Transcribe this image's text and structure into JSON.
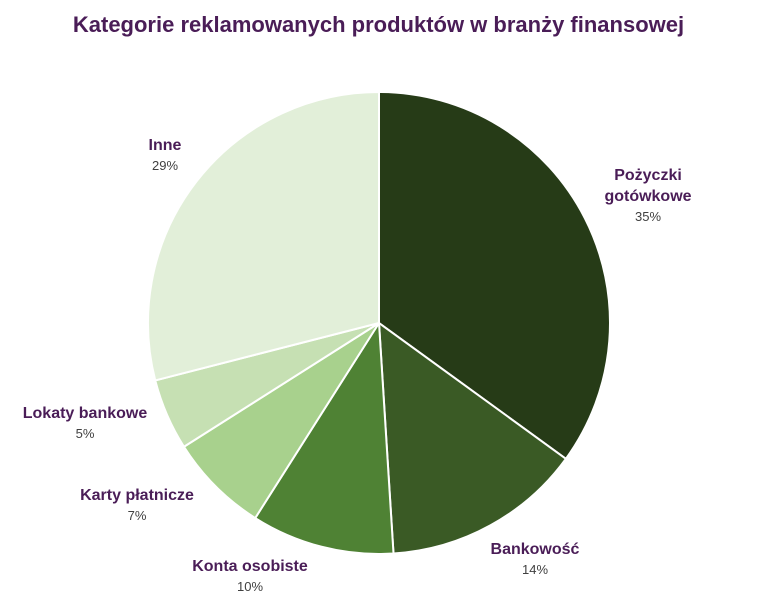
{
  "chart_data": {
    "type": "pie",
    "title": "Kategorie reklamowanych produktów w branży finansowej",
    "start_angle_deg": 0,
    "direction": "clockwise",
    "label_color": "#4a1d57",
    "value_color": "#404040",
    "slices": [
      {
        "label": [
          "Pożyczki",
          "gotówkowe"
        ],
        "value": 35,
        "display": "35%",
        "color": "#263b17"
      },
      {
        "label": [
          "Bankowość"
        ],
        "value": 14,
        "display": "14%",
        "color": "#3a5a25"
      },
      {
        "label": [
          "Konta osobiste"
        ],
        "value": 10,
        "display": "10%",
        "color": "#4f8234"
      },
      {
        "label": [
          "Karty płatnicze"
        ],
        "value": 7,
        "display": "7%",
        "color": "#a8d18d"
      },
      {
        "label": [
          "Lokaty bankowe"
        ],
        "value": 5,
        "display": "5%",
        "color": "#c6e0b3"
      },
      {
        "label": [
          "Inne"
        ],
        "value": 29,
        "display": "29%",
        "color": "#e2efd9"
      }
    ]
  }
}
